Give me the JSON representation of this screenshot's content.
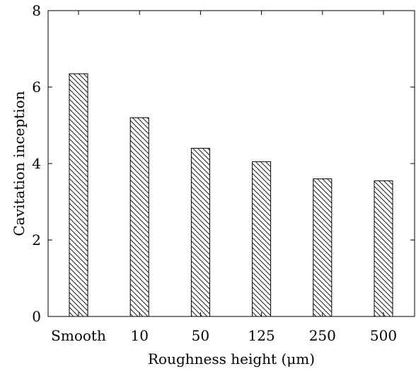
{
  "chart_data": {
    "type": "bar",
    "categories": [
      "Smooth",
      "10",
      "50",
      "125",
      "250",
      "500"
    ],
    "values": [
      6.35,
      5.2,
      4.4,
      4.05,
      3.6,
      3.55
    ],
    "xlabel": "Roughness height (μm)",
    "ylabel": "Cavitation inception",
    "ylim": [
      0,
      8
    ],
    "yticks": [
      "0",
      "2",
      "4",
      "6",
      "8"
    ],
    "grid": false,
    "bar_fill": "hatched",
    "colors": {
      "stroke": "#000000",
      "background": "#ffffff"
    }
  }
}
